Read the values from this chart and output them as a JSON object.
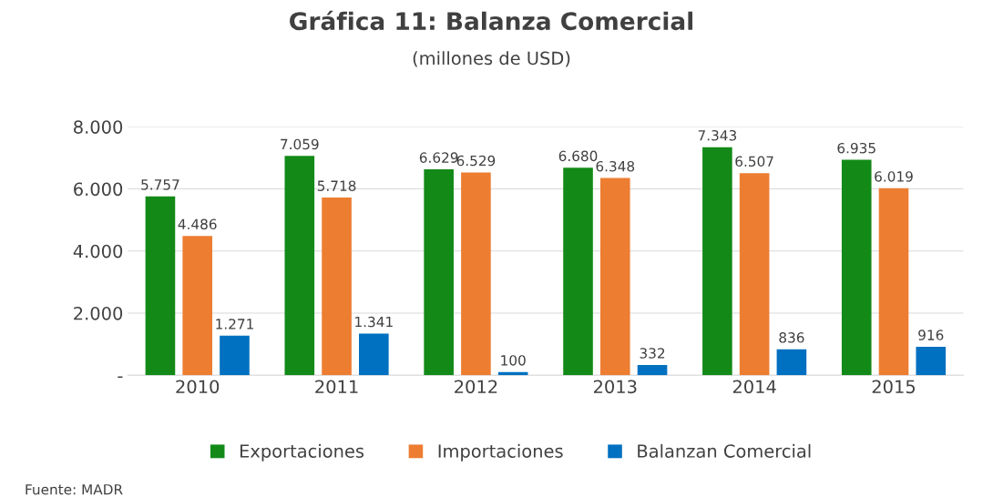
{
  "chart_data": {
    "type": "bar",
    "title": "Gráfica 11: Balanza Comercial",
    "subtitle": "(millones de USD)",
    "categories": [
      "2010",
      "2011",
      "2012",
      "2013",
      "2014",
      "2015"
    ],
    "series": [
      {
        "name": "Exportaciones",
        "color": "#138a17",
        "values": [
          5757,
          7059,
          6629,
          6680,
          7343,
          6935
        ],
        "value_labels": [
          "5.757",
          "7.059",
          "6.629",
          "6.680",
          "7.343",
          "6.935"
        ]
      },
      {
        "name": "Importaciones",
        "color": "#ed7d31",
        "values": [
          4486,
          5718,
          6529,
          6348,
          6507,
          6019
        ],
        "value_labels": [
          "4.486",
          "5.718",
          "6.529",
          "6.348",
          "6.507",
          "6.019"
        ]
      },
      {
        "name": "Balanzan Comercial",
        "color": "#0070c0",
        "values": [
          1271,
          1341,
          100,
          332,
          836,
          916
        ],
        "value_labels": [
          "1.271",
          "1.341",
          "100",
          "332",
          "836",
          "916"
        ]
      }
    ],
    "ylim": [
      0,
      8000
    ],
    "yticks": [
      {
        "value": 0,
        "label": "-"
      },
      {
        "value": 2000,
        "label": "2.000"
      },
      {
        "value": 4000,
        "label": "4.000"
      },
      {
        "value": 6000,
        "label": "6.000"
      },
      {
        "value": 8000,
        "label": "8.000"
      }
    ],
    "grid": "y",
    "legend": "bottom",
    "annotations": [
      "Fuente: MADR"
    ]
  }
}
